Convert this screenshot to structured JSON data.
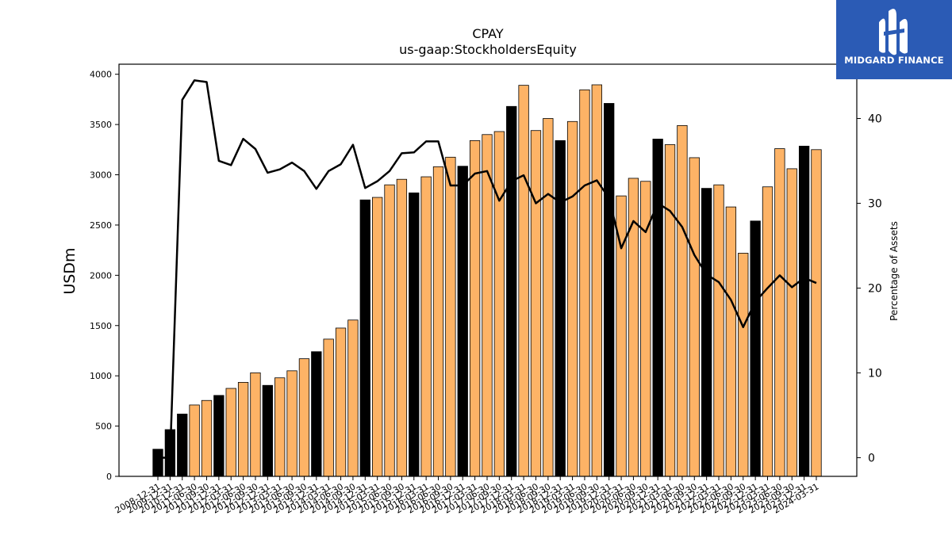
{
  "chart_data": {
    "type": "bar",
    "title": "CPAY",
    "subtitle": "us-gaap:StockholdersEquity",
    "ylabel": "USDm",
    "y2label": "Percentage of Assets",
    "ylim": [
      0,
      4100
    ],
    "y2lim": [
      -2.2,
      46.4
    ],
    "yticks": [
      0,
      500,
      1000,
      1500,
      2000,
      2500,
      3000,
      3500,
      4000
    ],
    "y2ticks": [
      0,
      10,
      20,
      30,
      40
    ],
    "grid": false,
    "colors": {
      "annual_bar": "#000000",
      "quarterly_bar": "#fdb366",
      "line": "#000000"
    },
    "categories": [
      "2008-12-31",
      "2009-12-31",
      "2010-12-31",
      "2011-06-30",
      "2011-09-30",
      "2011-12-31",
      "2012-03-31",
      "2012-06-30",
      "2012-09-30",
      "2012-12-31",
      "2013-03-31",
      "2013-06-30",
      "2013-09-30",
      "2013-12-31",
      "2014-03-31",
      "2014-06-30",
      "2014-09-30",
      "2014-12-31",
      "2015-03-31",
      "2015-06-30",
      "2015-09-30",
      "2015-12-31",
      "2016-03-31",
      "2016-06-30",
      "2016-09-30",
      "2016-12-31",
      "2017-03-31",
      "2017-06-30",
      "2017-09-30",
      "2017-12-31",
      "2018-03-31",
      "2018-06-30",
      "2018-09-30",
      "2018-12-31",
      "2019-03-31",
      "2019-06-30",
      "2019-09-30",
      "2019-12-31",
      "2020-03-31",
      "2020-06-30",
      "2020-09-30",
      "2020-12-31",
      "2021-03-31",
      "2021-06-30",
      "2021-09-30",
      "2021-12-31",
      "2022-03-31",
      "2022-06-30",
      "2022-09-30",
      "2022-12-31",
      "2023-03-31",
      "2023-06-30",
      "2023-09-30",
      "2023-12-31",
      "2024-03-31"
    ],
    "x_tick_labels": [
      "2008-12-31",
      "2009-12-31",
      "2010-12-31",
      "2011-06-30",
      "2011-09-30",
      "2011-12-31",
      "2012-03-31",
      "2012-06-30",
      "2012-09-30",
      "2012-12-31",
      "2013-03-31",
      "2013-06-30",
      "2013-09-30",
      "2013-12-31",
      "2014-03-31",
      "2014-06-30",
      "2014-09-30",
      "2014-12-31",
      "2015-03-31",
      "2015-06-30",
      "2015-09-30",
      "2015-12-31",
      "2016-03-31",
      "2016-06-30",
      "2016-09-30",
      "2016-12-31",
      "2017-03-31",
      "2017-06-30",
      "2017-09-30",
      "2017-12-31",
      "2018-03-31",
      "2018-06-30",
      "2018-09-30",
      "2018-12-31",
      "2019-03-31",
      "2019-06-30",
      "2019-09-30",
      "2019-12-31",
      "2020-03-31",
      "2020-06-30",
      "2020-09-30",
      "2020-12-31",
      "2021-03-31",
      "2021-06-30",
      "2021-09-30",
      "2021-12-31",
      "2022-03-31",
      "2022-06-30",
      "2022-09-30",
      "2022-12-31",
      "2023-03-31",
      "2023-06-30",
      "2023-09-30",
      "2023-12-31",
      "2024-03-31"
    ],
    "period_type": [
      "annual",
      "annual",
      "annual",
      "quarterly",
      "quarterly",
      "annual",
      "quarterly",
      "quarterly",
      "quarterly",
      "annual",
      "quarterly",
      "quarterly",
      "quarterly",
      "annual",
      "quarterly",
      "quarterly",
      "quarterly",
      "annual",
      "quarterly",
      "quarterly",
      "quarterly",
      "annual",
      "quarterly",
      "quarterly",
      "quarterly",
      "annual",
      "quarterly",
      "quarterly",
      "quarterly",
      "annual",
      "quarterly",
      "quarterly",
      "quarterly",
      "annual",
      "quarterly",
      "quarterly",
      "quarterly",
      "annual",
      "quarterly",
      "quarterly",
      "quarterly",
      "annual",
      "quarterly",
      "quarterly",
      "quarterly",
      "annual",
      "quarterly",
      "quarterly",
      "quarterly",
      "annual",
      "quarterly",
      "quarterly",
      "quarterly",
      "annual",
      "quarterly"
    ],
    "series": [
      {
        "name": "StockholdersEquity",
        "axis": "left",
        "values": [
          270,
          465,
          620,
          710,
          755,
          805,
          875,
          935,
          1030,
          905,
          980,
          1050,
          1170,
          1240,
          1365,
          1475,
          1555,
          2750,
          2775,
          2900,
          2955,
          2820,
          2980,
          3080,
          3175,
          3085,
          3340,
          3400,
          3430,
          3680,
          3890,
          3440,
          3560,
          3340,
          3530,
          3845,
          3895,
          3710,
          2790,
          2965,
          2935,
          3355,
          3300,
          3490,
          3170,
          2865,
          2900,
          2680,
          2220,
          2540,
          2880,
          3260,
          3060,
          3285,
          3250
        ]
      },
      {
        "name": "Percentage of Assets",
        "axis": "right",
        "type": "line",
        "values": [
          0,
          0,
          42.2,
          44.5,
          44.3,
          35,
          34.5,
          37.6,
          36.4,
          33.6,
          34,
          34.8,
          33.8,
          31.7,
          33.8,
          34.6,
          36.9,
          31.8,
          32.6,
          33.8,
          35.9,
          36,
          37.3,
          37.3,
          32.1,
          32.1,
          33.5,
          33.8,
          30.3,
          32.6,
          33.3,
          30,
          31.1,
          30.1,
          30.8,
          32.1,
          32.7,
          30.6,
          24.7,
          27.9,
          26.6,
          30,
          29.1,
          27.2,
          23.9,
          21.6,
          20.7,
          18.6,
          15.4,
          18.4,
          20,
          21.5,
          20.1,
          21.2,
          20.6
        ]
      }
    ]
  },
  "logo": {
    "text": "MIDGARD FINANCE",
    "icon": "midgard-logo-icon"
  }
}
